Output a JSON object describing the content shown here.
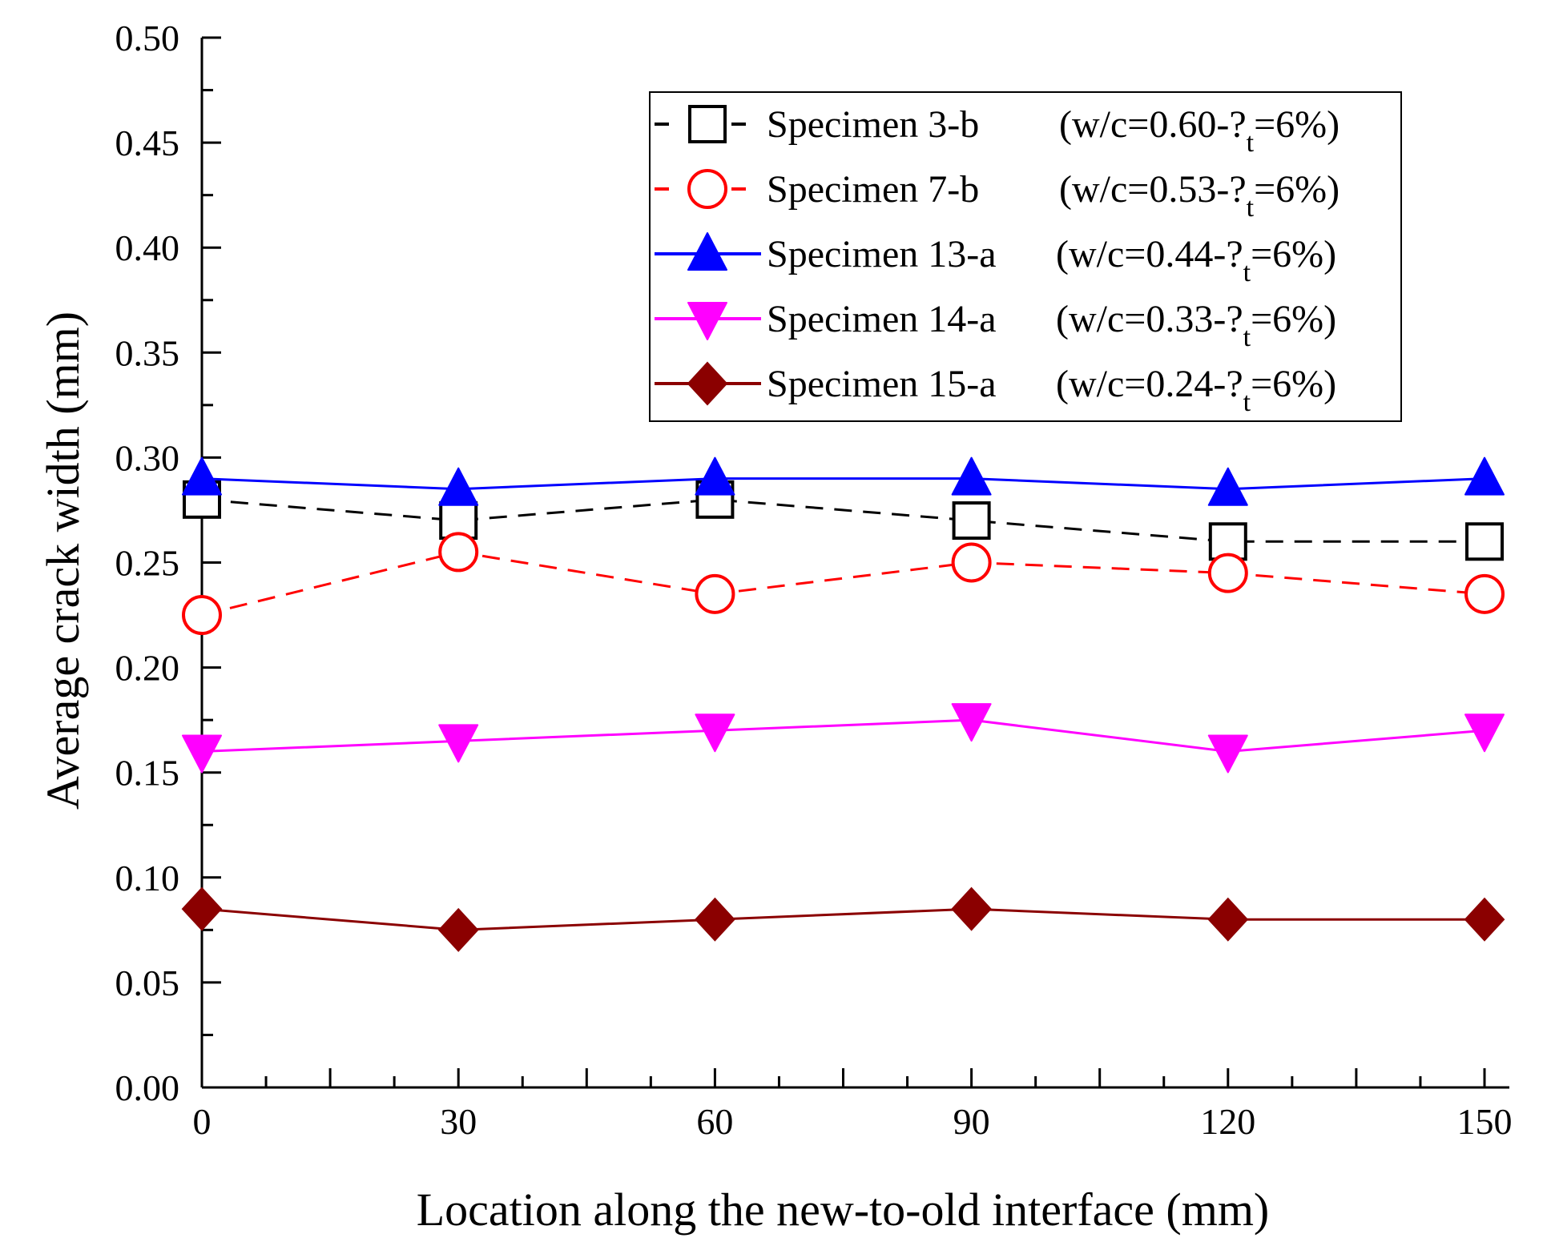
{
  "chart_data": {
    "type": "line",
    "title": "",
    "xlabel": "Location along the new-to-old interface (mm)",
    "ylabel": "Average crack width (mm)",
    "xlim": [
      0,
      150
    ],
    "ylim": [
      0,
      0.5
    ],
    "xticks": [
      0,
      30,
      60,
      90,
      120,
      150
    ],
    "xtick_labels": [
      "0",
      "30",
      "60",
      "90",
      "120",
      "150"
    ],
    "yticks": [
      0,
      0.05,
      0.1,
      0.15,
      0.2,
      0.25,
      0.3,
      0.35,
      0.4,
      0.45,
      0.5
    ],
    "ytick_labels": [
      "0.00",
      "0.05",
      "0.10",
      "0.15",
      "0.20",
      "0.25",
      "0.30",
      "0.35",
      "0.40",
      "0.45",
      "0.50"
    ],
    "grid": false,
    "legend_placement": "top-right",
    "x": [
      0,
      30,
      60,
      90,
      120,
      150
    ],
    "series": [
      {
        "name": "Specimen 3-b",
        "condition": [
          "(w/c=0.60-?",
          "t",
          "=6%)"
        ],
        "color": "#000000",
        "marker": "square-open",
        "dash": true,
        "values": [
          0.28,
          0.27,
          0.28,
          0.27,
          0.26,
          0.26
        ]
      },
      {
        "name": "Specimen 7-b",
        "condition": [
          "(w/c=0.53-?",
          "t",
          "=6%)"
        ],
        "color": "#ff0000",
        "marker": "circle-open",
        "dash": true,
        "values": [
          0.225,
          0.255,
          0.235,
          0.25,
          0.245,
          0.235
        ]
      },
      {
        "name": "Specimen 13-a",
        "condition": [
          "(w/c=0.44-?",
          "t",
          "=6%)"
        ],
        "color": "#0000ff",
        "marker": "triangle-up",
        "dash": false,
        "values": [
          0.29,
          0.285,
          0.29,
          0.29,
          0.285,
          0.29
        ]
      },
      {
        "name": "Specimen 14-a",
        "condition": [
          "(w/c=0.33-?",
          "t",
          "=6%)"
        ],
        "color": "#ff00ff",
        "marker": "triangle-down",
        "dash": false,
        "values": [
          0.16,
          0.165,
          0.17,
          0.175,
          0.16,
          0.17
        ]
      },
      {
        "name": "Specimen 15-a",
        "condition": [
          "(w/c=0.24-?",
          "t",
          "=6%)"
        ],
        "color": "#8b0000",
        "marker": "diamond",
        "dash": false,
        "values": [
          0.085,
          0.075,
          0.08,
          0.085,
          0.08,
          0.08
        ]
      }
    ]
  }
}
